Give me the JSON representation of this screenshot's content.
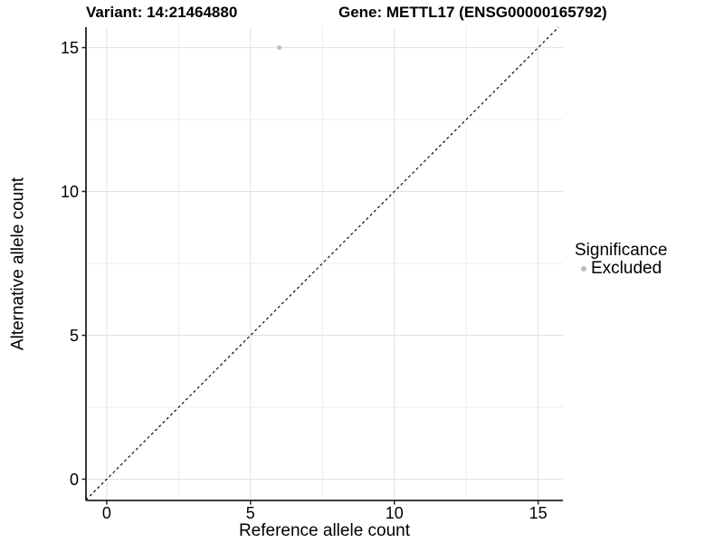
{
  "chart_data": {
    "type": "scatter",
    "title_left": "Variant: 14:21464880",
    "title_right": "Gene: METTL17 (ENSG00000165792)",
    "xlabel": "Reference allele count",
    "ylabel": "Alternative allele count",
    "xlim": [
      -0.72,
      15.86
    ],
    "ylim": [
      -0.74,
      15.71
    ],
    "x_ticks": [
      0,
      5,
      10,
      15
    ],
    "y_ticks": [
      0,
      5,
      10,
      15
    ],
    "x_minor_ticks": [
      2.5,
      7.5,
      12.5
    ],
    "y_minor_ticks": [
      2.5,
      7.5,
      12.5
    ],
    "grid": true,
    "points": [
      {
        "x": 6,
        "y": 15,
        "series": "Excluded"
      }
    ],
    "reference_line": {
      "type": "diagonal",
      "slope": 1,
      "intercept": 0,
      "style": "dashed"
    },
    "legend": {
      "title": "Significance",
      "position": "right",
      "items": [
        {
          "label": "Excluded",
          "color": "#bdbdbd"
        }
      ]
    },
    "colors": {
      "background": "#ffffff",
      "point": "#bdbdbd",
      "grid_major": "#e2e2e2",
      "grid_minor": "#ededed",
      "axis": "#222222",
      "reference_line": "#1a1a1a",
      "text": "#000000"
    }
  }
}
